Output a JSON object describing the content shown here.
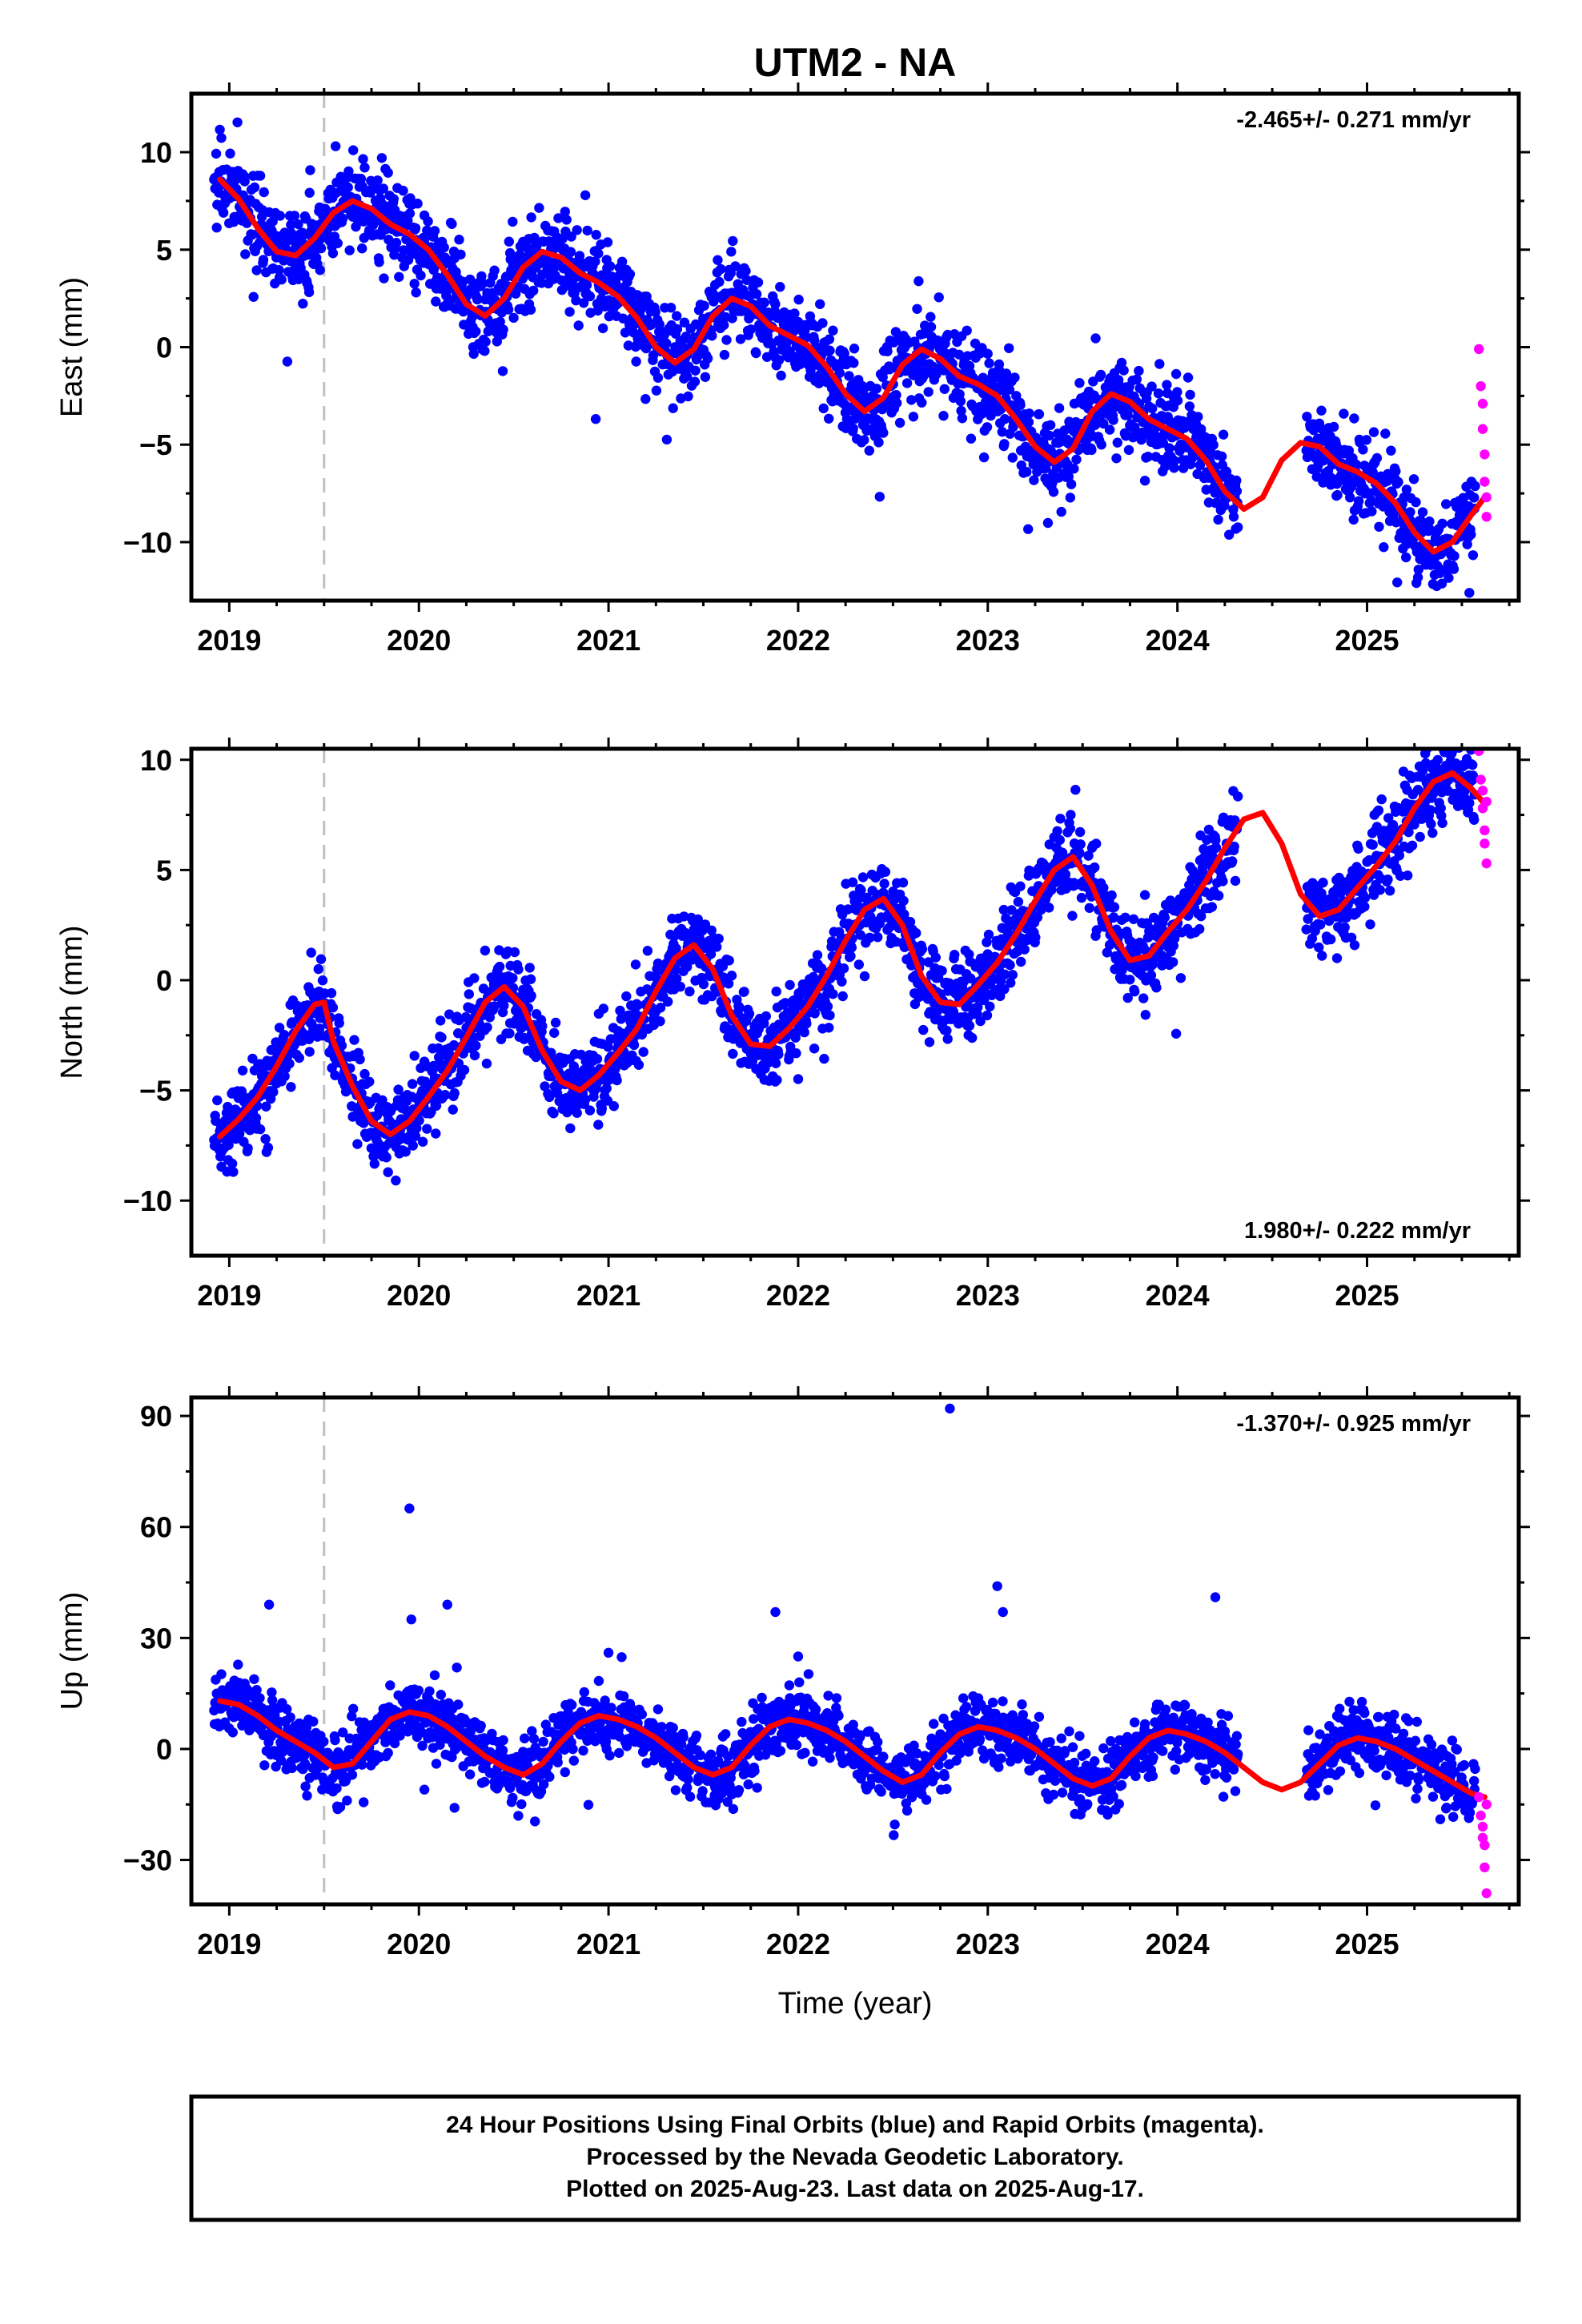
{
  "title": "UTM2 - NA",
  "caption": {
    "lines": [
      "24 Hour Positions Using Final Orbits (blue) and Rapid Orbits (magenta).",
      "Processed by the Nevada Geodetic Laboratory.",
      "Plotted on 2025-Aug-23. Last data on 2025-Aug-17."
    ]
  },
  "colors": {
    "final_orbits": "#0000ff",
    "rapid_orbits": "#ff00ff",
    "model_fit": "#ff0000",
    "event_marker": "#c0c0c0",
    "frame": "#000000"
  },
  "chart_data": [
    {
      "type": "scatter",
      "component": "East",
      "ylabel": "East (mm)",
      "xlabel": "",
      "xlim": [
        2018.8,
        2025.8
      ],
      "ylim": [
        -13,
        13
      ],
      "x_ticks": [
        2019,
        2020,
        2021,
        2022,
        2023,
        2024,
        2025
      ],
      "x_tick_labels": [
        "2019",
        "2020",
        "2021",
        "2022",
        "2023",
        "2024",
        "2025"
      ],
      "y_ticks": [
        -10,
        -5,
        0,
        5,
        10
      ],
      "y_tick_labels": [
        "−10",
        "−5",
        "0",
        "5",
        "10"
      ],
      "rate_text": "-2.465+/- 0.271 mm/yr",
      "rate_position": "top-right",
      "event_lines": [
        2019.5
      ],
      "model": {
        "name": "model fit",
        "x": [
          2018.95,
          2019.05,
          2019.15,
          2019.25,
          2019.35,
          2019.45,
          2019.55,
          2019.65,
          2019.75,
          2019.85,
          2019.95,
          2020.05,
          2020.15,
          2020.25,
          2020.35,
          2020.45,
          2020.55,
          2020.65,
          2020.75,
          2020.85,
          2020.95,
          2021.05,
          2021.15,
          2021.25,
          2021.35,
          2021.45,
          2021.55,
          2021.65,
          2021.75,
          2021.85,
          2021.95,
          2022.05,
          2022.15,
          2022.25,
          2022.35,
          2022.45,
          2022.55,
          2022.65,
          2022.75,
          2022.85,
          2022.95,
          2023.05,
          2023.15,
          2023.25,
          2023.35,
          2023.45,
          2023.55,
          2023.65,
          2023.75,
          2023.85,
          2023.95,
          2024.05,
          2024.15,
          2024.25,
          2024.35,
          2024.45,
          2024.55,
          2024.65,
          2024.75,
          2024.85,
          2024.95,
          2025.05,
          2025.15,
          2025.25,
          2025.35,
          2025.45,
          2025.55,
          2025.62
        ],
        "y": [
          8.6,
          7.6,
          6.1,
          4.9,
          4.7,
          5.6,
          6.9,
          7.5,
          7.1,
          6.3,
          5.8,
          5.0,
          3.7,
          2.2,
          1.6,
          2.5,
          4.1,
          4.9,
          4.6,
          3.8,
          3.3,
          2.6,
          1.5,
          0.0,
          -0.8,
          -0.1,
          1.6,
          2.5,
          2.1,
          1.1,
          0.6,
          0.1,
          -1.0,
          -2.4,
          -3.3,
          -2.6,
          -0.9,
          -0.1,
          -0.6,
          -1.5,
          -1.9,
          -2.5,
          -3.7,
          -5.1,
          -5.9,
          -5.2,
          -3.3,
          -2.4,
          -2.8,
          -3.7,
          -4.2,
          -4.7,
          -5.8,
          -7.4,
          -8.3,
          -7.7,
          -5.8,
          -4.9,
          -5.1,
          -6.0,
          -6.4,
          -7.0,
          -8.0,
          -9.5,
          -10.5,
          -10.0,
          -8.6,
          -7.7
        ]
      },
      "final_orbits_series": {
        "name": "Final Orbits",
        "segments": [
          [
            2018.92,
            2024.32
          ],
          [
            2024.68,
            2025.57
          ]
        ],
        "scatter_mm": 1.1
      },
      "rapid_orbits": {
        "name": "Rapid Orbits",
        "x": [
          2025.59,
          2025.6,
          2025.61,
          2025.61,
          2025.62,
          2025.62,
          2025.63,
          2025.63
        ],
        "y": [
          -0.1,
          -2.0,
          -2.9,
          -4.2,
          -5.5,
          -6.9,
          -7.7,
          -8.7
        ]
      }
    },
    {
      "type": "scatter",
      "component": "North",
      "ylabel": "North (mm)",
      "xlabel": "",
      "xlim": [
        2018.8,
        2025.8
      ],
      "ylim": [
        -12.5,
        10.5
      ],
      "x_ticks": [
        2019,
        2020,
        2021,
        2022,
        2023,
        2024,
        2025
      ],
      "x_tick_labels": [
        "2019",
        "2020",
        "2021",
        "2022",
        "2023",
        "2024",
        "2025"
      ],
      "y_ticks": [
        -10,
        -5,
        0,
        5,
        10
      ],
      "y_tick_labels": [
        "−10",
        "−5",
        "0",
        "5",
        "10"
      ],
      "rate_text": "1.980+/- 0.222 mm/yr",
      "rate_position": "bottom-right",
      "event_lines": [
        2019.5
      ],
      "model": {
        "name": "model fit",
        "x": [
          2018.95,
          2019.05,
          2019.15,
          2019.25,
          2019.35,
          2019.45,
          2019.5,
          2019.55,
          2019.65,
          2019.75,
          2019.85,
          2019.95,
          2020.05,
          2020.15,
          2020.25,
          2020.35,
          2020.45,
          2020.55,
          2020.65,
          2020.75,
          2020.85,
          2020.95,
          2021.05,
          2021.15,
          2021.25,
          2021.35,
          2021.45,
          2021.55,
          2021.65,
          2021.75,
          2021.85,
          2021.95,
          2022.05,
          2022.15,
          2022.25,
          2022.35,
          2022.45,
          2022.55,
          2022.65,
          2022.75,
          2022.85,
          2022.95,
          2023.05,
          2023.15,
          2023.25,
          2023.35,
          2023.45,
          2023.55,
          2023.65,
          2023.75,
          2023.85,
          2023.95,
          2024.05,
          2024.15,
          2024.25,
          2024.35,
          2024.45,
          2024.55,
          2024.65,
          2024.75,
          2024.85,
          2024.95,
          2025.05,
          2025.15,
          2025.25,
          2025.35,
          2025.45,
          2025.55,
          2025.62
        ],
        "y": [
          -7.1,
          -6.3,
          -5.3,
          -3.9,
          -2.3,
          -1.1,
          -1.0,
          -2.8,
          -4.8,
          -6.4,
          -7.0,
          -6.4,
          -5.3,
          -4.1,
          -2.6,
          -1.0,
          -0.3,
          -1.2,
          -3.2,
          -4.6,
          -5.0,
          -4.3,
          -3.3,
          -2.2,
          -0.5,
          1.0,
          1.6,
          0.5,
          -1.6,
          -2.9,
          -3.0,
          -2.2,
          -1.2,
          0.2,
          1.8,
          3.2,
          3.7,
          2.5,
          0.2,
          -1.0,
          -1.1,
          -0.2,
          0.8,
          2.1,
          3.6,
          5.0,
          5.6,
          4.3,
          2.2,
          0.9,
          1.1,
          2.2,
          3.2,
          4.5,
          6.0,
          7.3,
          7.6,
          6.2,
          3.9,
          2.9,
          3.2,
          4.2,
          5.2,
          6.3,
          7.8,
          9.0,
          9.4,
          8.7,
          8.0
        ]
      },
      "final_orbits_series": {
        "name": "Final Orbits",
        "segments": [
          [
            2018.92,
            2024.32
          ],
          [
            2024.68,
            2025.57
          ]
        ],
        "scatter_mm": 0.95
      },
      "rapid_orbits": {
        "name": "Rapid Orbits",
        "x": [
          2025.59,
          2025.6,
          2025.61,
          2025.61,
          2025.62,
          2025.62,
          2025.63,
          2025.63
        ],
        "y": [
          10.4,
          9.1,
          8.6,
          7.8,
          6.8,
          6.2,
          5.3,
          8.1
        ]
      }
    },
    {
      "type": "scatter",
      "component": "Up",
      "ylabel": "Up (mm)",
      "xlabel": "Time (year)",
      "xlim": [
        2018.8,
        2025.8
      ],
      "ylim": [
        -42,
        95
      ],
      "x_ticks": [
        2019,
        2020,
        2021,
        2022,
        2023,
        2024,
        2025
      ],
      "x_tick_labels": [
        "2019",
        "2020",
        "2021",
        "2022",
        "2023",
        "2024",
        "2025"
      ],
      "y_ticks": [
        -30,
        0,
        30,
        60,
        90
      ],
      "y_tick_labels": [
        "−30",
        "0",
        "30",
        "60",
        "90"
      ],
      "rate_text": "-1.370+/- 0.925 mm/yr",
      "rate_position": "top-right",
      "event_lines": [
        2019.5
      ],
      "model": {
        "name": "model fit",
        "x": [
          2018.95,
          2019.05,
          2019.15,
          2019.25,
          2019.35,
          2019.45,
          2019.55,
          2019.65,
          2019.75,
          2019.85,
          2019.95,
          2020.05,
          2020.15,
          2020.25,
          2020.35,
          2020.45,
          2020.55,
          2020.65,
          2020.75,
          2020.85,
          2020.95,
          2021.05,
          2021.15,
          2021.25,
          2021.35,
          2021.45,
          2021.55,
          2021.65,
          2021.75,
          2021.85,
          2021.95,
          2022.05,
          2022.15,
          2022.25,
          2022.35,
          2022.45,
          2022.55,
          2022.65,
          2022.75,
          2022.85,
          2022.95,
          2023.05,
          2023.15,
          2023.25,
          2023.35,
          2023.45,
          2023.55,
          2023.65,
          2023.75,
          2023.85,
          2023.95,
          2024.05,
          2024.15,
          2024.25,
          2024.35,
          2024.45,
          2024.55,
          2024.65,
          2024.75,
          2024.85,
          2024.95,
          2025.05,
          2025.15,
          2025.25,
          2025.35,
          2025.45,
          2025.55,
          2025.62
        ],
        "y": [
          13,
          12,
          9,
          5,
          2,
          -1,
          -5,
          -4,
          2,
          8,
          10,
          9,
          6,
          2,
          -2,
          -5,
          -7,
          -4,
          2,
          7,
          9,
          8,
          6,
          3,
          -1,
          -5,
          -7,
          -5,
          1,
          6,
          8,
          7,
          5,
          2,
          -2,
          -6,
          -9,
          -7,
          -1,
          4,
          6,
          5,
          3,
          0,
          -4,
          -8,
          -10,
          -8,
          -2,
          3,
          5,
          4,
          2,
          -1,
          -5,
          -9,
          -11,
          -9,
          -4,
          1,
          3,
          2,
          0,
          -3,
          -6,
          -9,
          -12,
          -13
        ]
      },
      "final_orbits_series": {
        "name": "Final Orbits",
        "segments": [
          [
            2018.92,
            2024.32
          ],
          [
            2024.68,
            2025.57
          ]
        ],
        "scatter_mm": 4.2
      },
      "outliers": {
        "x": [
          2019.21,
          2019.95,
          2019.96,
          2020.15,
          2020.2,
          2021.0,
          2021.88,
          2022.0,
          2022.8,
          2023.05,
          2023.08,
          2024.2
        ],
        "y": [
          39,
          65,
          35,
          39,
          22,
          26,
          37,
          25,
          92,
          44,
          37,
          41
        ]
      },
      "rapid_orbits": {
        "name": "Rapid Orbits",
        "x": [
          2025.59,
          2025.6,
          2025.61,
          2025.61,
          2025.62,
          2025.62,
          2025.63,
          2025.63
        ],
        "y": [
          -13,
          -18,
          -21,
          -24,
          -26,
          -32,
          -39,
          -15
        ]
      }
    }
  ]
}
